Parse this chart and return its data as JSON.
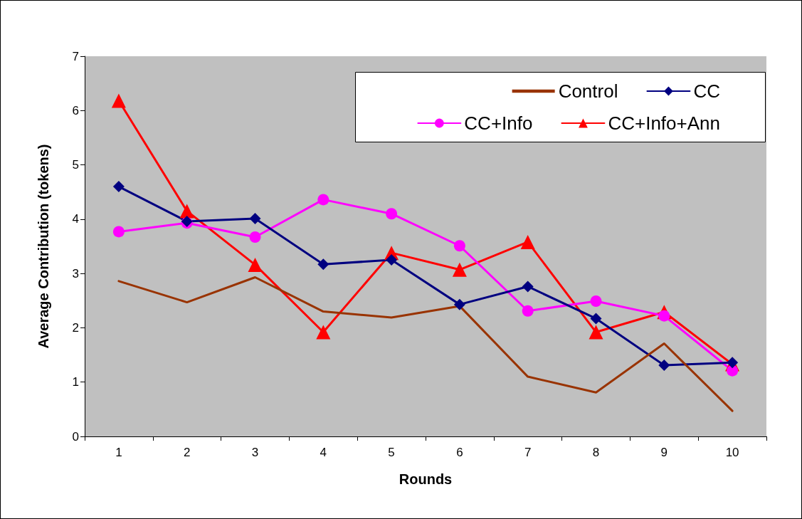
{
  "chart_data": {
    "type": "line",
    "xlabel": "Rounds",
    "ylabel": "Average Contribution (tokens)",
    "categories": [
      "1",
      "2",
      "3",
      "4",
      "5",
      "6",
      "7",
      "8",
      "9",
      "10"
    ],
    "series": [
      {
        "name": "Control",
        "color": "#993300",
        "marker": "none",
        "values": [
          2.86,
          2.47,
          2.93,
          2.3,
          2.19,
          2.4,
          1.1,
          0.81,
          1.71,
          0.47
        ]
      },
      {
        "name": "CC",
        "color": "#000080",
        "marker": "diamond",
        "values": [
          4.6,
          3.96,
          4.01,
          3.17,
          3.25,
          2.43,
          2.76,
          2.17,
          1.31,
          1.36
        ]
      },
      {
        "name": "CC+Info",
        "color": "#ff00ff",
        "marker": "circle",
        "values": [
          3.77,
          3.93,
          3.67,
          4.36,
          4.1,
          3.51,
          2.31,
          2.49,
          2.22,
          1.21
        ]
      },
      {
        "name": "CC+Info+Ann",
        "color": "#ff0000",
        "marker": "triangle",
        "values": [
          6.18,
          4.15,
          3.16,
          1.92,
          3.38,
          3.07,
          3.58,
          1.92,
          2.29,
          1.33
        ]
      }
    ],
    "ylim": [
      0,
      7
    ],
    "yticks": [
      0,
      1,
      2,
      3,
      4,
      5,
      6,
      7
    ],
    "grid": false,
    "legend": "top right"
  }
}
